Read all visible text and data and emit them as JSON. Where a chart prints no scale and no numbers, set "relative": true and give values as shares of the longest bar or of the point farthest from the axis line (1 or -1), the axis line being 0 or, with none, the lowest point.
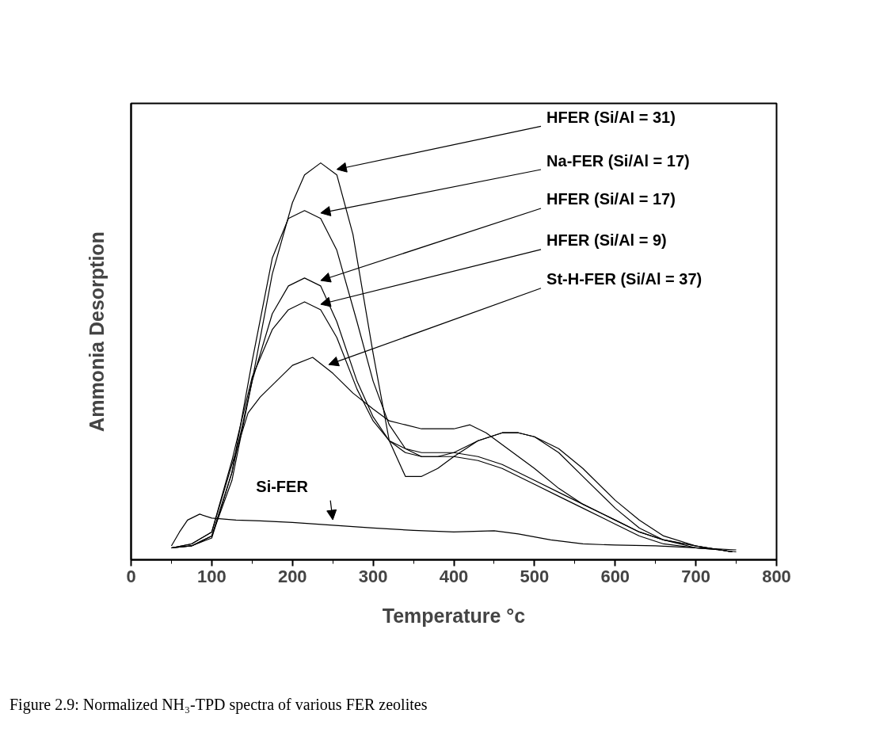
{
  "chart_data": {
    "type": "line",
    "relative": true,
    "xlabel": "Temperature °c",
    "ylabel": "Ammonia Desorption",
    "xlim": [
      0,
      800
    ],
    "xticks": [
      0,
      {
        "value": 50,
        "label": null
      },
      100,
      {
        "value": 150,
        "label": null
      },
      200,
      {
        "value": 250,
        "label": null
      },
      300,
      {
        "value": 350,
        "label": null
      },
      400,
      {
        "value": 450,
        "label": null
      },
      500,
      {
        "value": 550,
        "label": null
      },
      600,
      {
        "value": 650,
        "label": null
      },
      700,
      {
        "value": 750,
        "label": null
      },
      800
    ],
    "grid": false,
    "legend": false,
    "marker": "none",
    "line_style": "solid",
    "tick_labels": "x",
    "series": [
      {
        "name": "HFER (Si/Al = 31)",
        "color": "#000000",
        "x": [
          50,
          75,
          100,
          125,
          150,
          175,
          200,
          215,
          235,
          255,
          275,
          300,
          320,
          340,
          360,
          380,
          400,
          430,
          460,
          480,
          500,
          530,
          560,
          600,
          630,
          660,
          700,
          730,
          750
        ],
        "values": [
          0.03,
          0.035,
          0.06,
          0.2,
          0.45,
          0.72,
          0.9,
          0.97,
          1.0,
          0.97,
          0.82,
          0.52,
          0.3,
          0.21,
          0.21,
          0.23,
          0.26,
          0.3,
          0.32,
          0.32,
          0.31,
          0.27,
          0.21,
          0.13,
          0.08,
          0.05,
          0.03,
          0.025,
          0.02
        ]
      },
      {
        "name": "Na-FER (Si/Al = 17)",
        "color": "#000000",
        "x": [
          50,
          75,
          100,
          125,
          150,
          175,
          195,
          215,
          235,
          255,
          280,
          300,
          320,
          340,
          360,
          380,
          400,
          430,
          460,
          480,
          500,
          530,
          560,
          600,
          630,
          660,
          700,
          730,
          745
        ],
        "values": [
          0.03,
          0.035,
          0.055,
          0.22,
          0.5,
          0.76,
          0.86,
          0.88,
          0.86,
          0.78,
          0.6,
          0.45,
          0.34,
          0.28,
          0.26,
          0.26,
          0.27,
          0.3,
          0.32,
          0.32,
          0.31,
          0.28,
          0.23,
          0.15,
          0.1,
          0.06,
          0.035,
          0.025,
          0.02
        ]
      },
      {
        "name": "HFER (Si/Al = 17)",
        "color": "#000000",
        "x": [
          50,
          75,
          100,
          125,
          150,
          175,
          195,
          215,
          235,
          255,
          280,
          300,
          320,
          340,
          360,
          380,
          400,
          430,
          460,
          500,
          530,
          560,
          600,
          630,
          660,
          700,
          730,
          745
        ],
        "values": [
          0.03,
          0.035,
          0.06,
          0.22,
          0.45,
          0.62,
          0.69,
          0.71,
          0.69,
          0.6,
          0.45,
          0.36,
          0.3,
          0.27,
          0.26,
          0.26,
          0.26,
          0.25,
          0.23,
          0.19,
          0.16,
          0.13,
          0.09,
          0.06,
          0.04,
          0.03,
          0.025,
          0.02
        ]
      },
      {
        "name": "HFER (Si/Al = 9)",
        "color": "#000000",
        "x": [
          50,
          75,
          100,
          125,
          150,
          175,
          195,
          215,
          235,
          255,
          280,
          300,
          320,
          340,
          360,
          380,
          400,
          430,
          460,
          500,
          530,
          560,
          600,
          630,
          660,
          700,
          730,
          745
        ],
        "values": [
          0.03,
          0.04,
          0.07,
          0.25,
          0.46,
          0.58,
          0.63,
          0.65,
          0.63,
          0.56,
          0.43,
          0.35,
          0.3,
          0.28,
          0.27,
          0.27,
          0.27,
          0.26,
          0.24,
          0.2,
          0.17,
          0.14,
          0.1,
          0.07,
          0.05,
          0.035,
          0.025,
          0.02
        ]
      },
      {
        "name": "St-H-FER (Si/Al = 37)",
        "color": "#000000",
        "x": [
          50,
          75,
          100,
          125,
          145,
          160,
          180,
          200,
          225,
          250,
          275,
          300,
          320,
          340,
          360,
          380,
          400,
          420,
          440,
          460,
          500,
          530,
          560,
          600,
          630,
          660,
          700,
          730,
          745
        ],
        "values": [
          0.03,
          0.04,
          0.07,
          0.24,
          0.37,
          0.41,
          0.45,
          0.49,
          0.51,
          0.47,
          0.42,
          0.38,
          0.35,
          0.34,
          0.33,
          0.33,
          0.33,
          0.34,
          0.32,
          0.29,
          0.23,
          0.18,
          0.14,
          0.1,
          0.07,
          0.05,
          0.035,
          0.025,
          0.02
        ]
      },
      {
        "name": "Si-FER",
        "color": "#000000",
        "x": [
          50,
          60,
          70,
          85,
          100,
          130,
          160,
          200,
          250,
          300,
          350,
          400,
          450,
          480,
          520,
          560,
          600,
          650,
          700,
          750
        ],
        "values": [
          0.035,
          0.07,
          0.1,
          0.115,
          0.105,
          0.1,
          0.098,
          0.094,
          0.087,
          0.08,
          0.074,
          0.07,
          0.073,
          0.065,
          0.05,
          0.04,
          0.037,
          0.035,
          0.03,
          0.025
        ]
      }
    ],
    "annotations": [
      "Figure 2.9: Normalized NH₃-TPD spectra of various FER zeolites"
    ]
  }
}
